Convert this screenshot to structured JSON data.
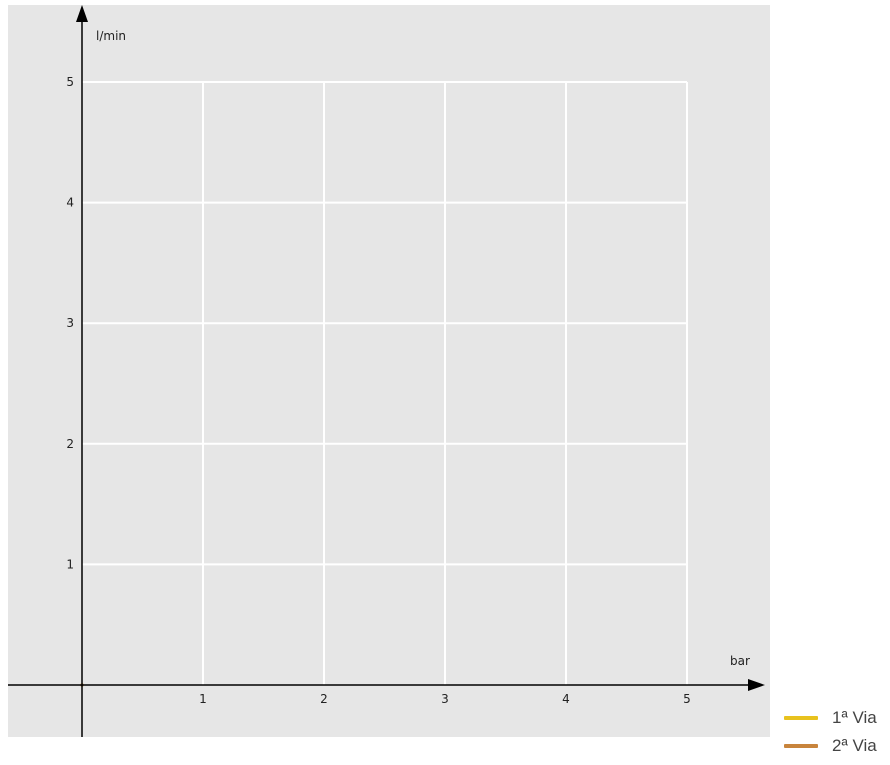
{
  "chart_data": {
    "type": "line",
    "title": "",
    "xlabel": "bar",
    "ylabel": "l/min",
    "xlim": [
      0,
      5
    ],
    "ylim": [
      0,
      5
    ],
    "x_ticks": [
      "1",
      "2",
      "3",
      "4",
      "5"
    ],
    "y_ticks": [
      "1",
      "2",
      "3",
      "4",
      "5"
    ],
    "grid": true,
    "legend_position": "bottom-right",
    "series": [
      {
        "name": "1ª Via",
        "color": "#e8c21e",
        "x": [
          0
        ],
        "y": [
          0
        ]
      },
      {
        "name": "2ª Via",
        "color": "#c8843c",
        "x": [
          0
        ],
        "y": [
          0
        ]
      }
    ],
    "colors": {
      "plot_background": "#e6e6e6",
      "grid": "#ffffff",
      "axis": "#000000"
    }
  }
}
